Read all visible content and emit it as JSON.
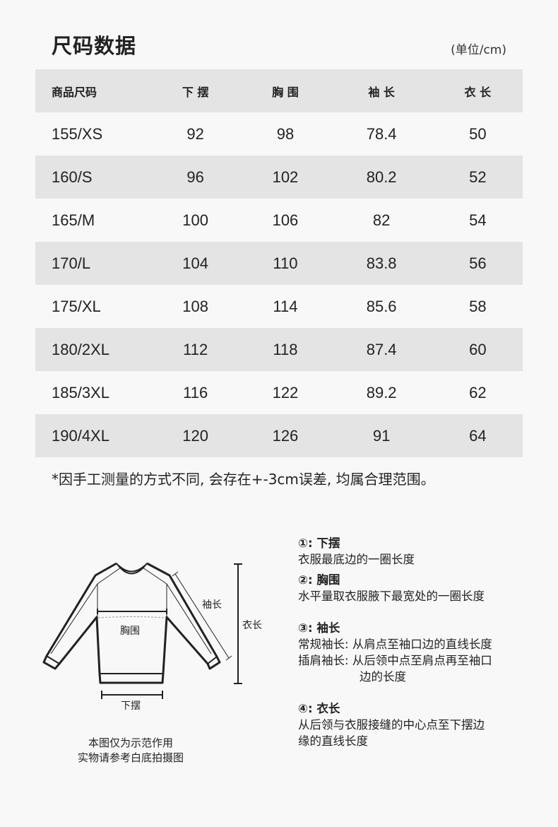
{
  "title": "尺码数据",
  "unit": "(单位/cm)",
  "table": {
    "headers": [
      "商品尺码",
      "下 摆",
      "胸 围",
      "袖 长",
      "衣 长"
    ],
    "rows": [
      [
        "155/XS",
        "92",
        "98",
        "78.4",
        "50"
      ],
      [
        "160/S",
        "96",
        "102",
        "80.2",
        "52"
      ],
      [
        "165/M",
        "100",
        "106",
        "82",
        "54"
      ],
      [
        "170/L",
        "104",
        "110",
        "83.8",
        "56"
      ],
      [
        "175/XL",
        "108",
        "114",
        "85.6",
        "58"
      ],
      [
        "180/2XL",
        "112",
        "118",
        "87.4",
        "60"
      ],
      [
        "185/3XL",
        "116",
        "122",
        "89.2",
        "62"
      ],
      [
        "190/4XL",
        "120",
        "126",
        "91",
        "64"
      ]
    ]
  },
  "note": "*因手工测量的方式不同, 会存在+-3cm误差, 均属合理范围。",
  "diagram": {
    "labels": {
      "sleeve": "袖长",
      "length": "衣长",
      "chest": "胸围",
      "hem": "下摆"
    },
    "caption": [
      "本图仅为示范作用",
      "实物请参考白底拍摄图"
    ]
  },
  "legend": [
    {
      "num": "①",
      "title": "下摆",
      "lines": [
        "衣服最底边的一圈长度"
      ]
    },
    {
      "num": "②",
      "title": "胸围",
      "lines": [
        "水平量取衣服腋下最宽处的一圈长度"
      ]
    },
    {
      "num": "③",
      "title": "袖长",
      "lines": [
        "常规袖长: 从肩点至袖口边的直线长度",
        "插肩袖长: 从后领中点至肩点再至袖口",
        "边的长度"
      ]
    },
    {
      "num": "④",
      "title": "衣长",
      "lines": [
        "从后领与衣服接缝的中心点至下摆边",
        "缘的直线长度"
      ]
    }
  ],
  "colors": {
    "background": "#f8f8f8",
    "stripe": "#e4e4e4",
    "text": "#222222"
  }
}
